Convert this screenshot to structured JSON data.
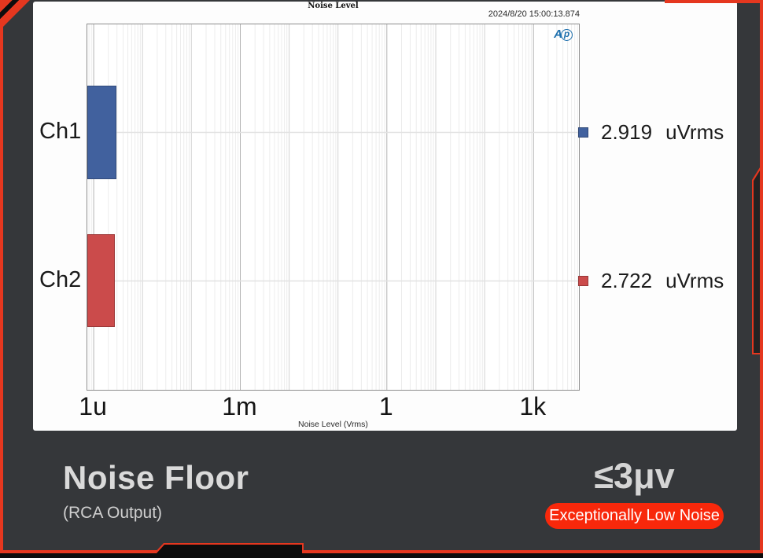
{
  "frame": {
    "bg_color": "#35373a",
    "accent_red": "#e5371f",
    "bottom_bar_color": "#0c0c0c"
  },
  "chart_panel": {
    "title": "Noise Level",
    "timestamp": "2024/8/20 15:00:13.874",
    "logo": {
      "a": "A",
      "p": "p",
      "color": "#1c6fad",
      "name": "audio-precision"
    }
  },
  "chart_data": {
    "type": "bar",
    "orientation": "horizontal",
    "title": "Noise Level",
    "xlabel": "Noise Level (Vrms)",
    "x_axis": {
      "scale": "log",
      "decade_min": -6.13,
      "decade_max": 3.93,
      "ticks": [
        {
          "label": "1u",
          "value": 1e-06
        },
        {
          "label": "1m",
          "value": 0.001
        },
        {
          "label": "1",
          "value": 1
        },
        {
          "label": "1k",
          "value": 1000.0
        }
      ],
      "grid": true
    },
    "categories": [
      "Ch1",
      "Ch2"
    ],
    "series": [
      {
        "name": "Ch1",
        "value_vrms": 2.919e-06,
        "color": "#41619e"
      },
      {
        "name": "Ch2",
        "value_vrms": 2.722e-06,
        "color": "#cb4b4b"
      }
    ],
    "legend": [
      {
        "value": "2.919",
        "unit": "uVrms",
        "color": "#41619e"
      },
      {
        "value": "2.722",
        "unit": "uVrms",
        "color": "#cb4b4b"
      }
    ],
    "legend_position": "right"
  },
  "footer": {
    "title": "Noise Floor",
    "subtitle": "(RCA Output)",
    "spec": "≤3μv",
    "badge": "Exceptionally Low Noise",
    "badge_color": "#f8280b"
  }
}
